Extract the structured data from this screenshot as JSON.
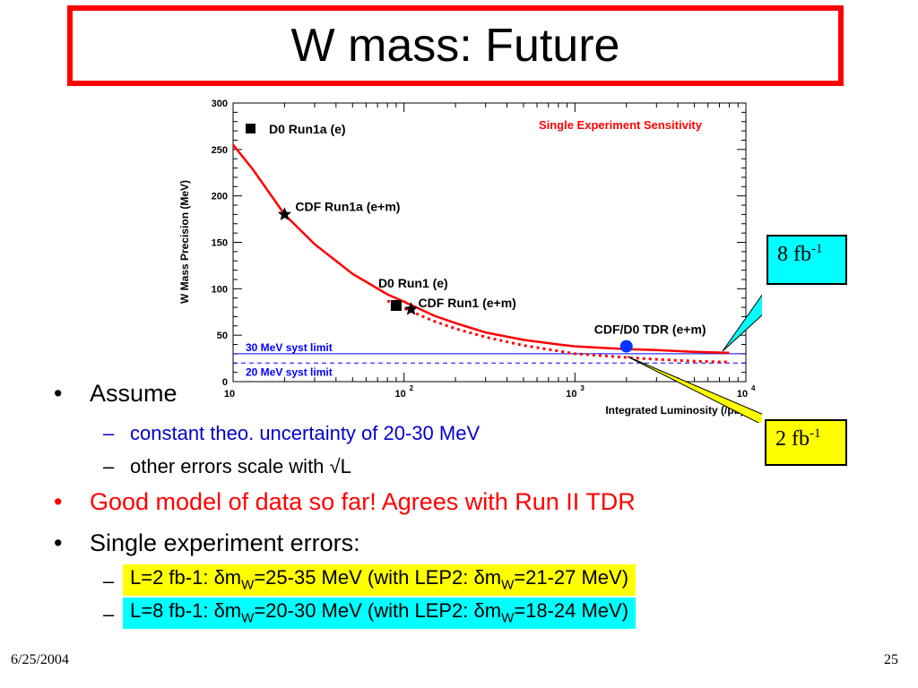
{
  "slide": {
    "title": "W mass: Future",
    "date": "6/25/2004",
    "page_number": "25"
  },
  "callouts": {
    "lum8": {
      "base": "8 fb",
      "sup": "-1",
      "color": "#00ffff"
    },
    "lum2": {
      "base": "2 fb",
      "sup": "-1",
      "color": "#ffff00"
    }
  },
  "bullets": {
    "assume": "Assume",
    "sub1": "constant theo. uncertainty of 20-30 MeV",
    "sub2": "other errors scale with √L",
    "good_model": "Good model of data so far! Agrees with Run II TDR",
    "single": "Single experiment errors:",
    "line1": {
      "pre": "L=2 fb-1: δm",
      "sub": "W",
      "mid": "=25-35 MeV (with LEP2: δm",
      "sub2": "W",
      "post": "=21-27 MeV)",
      "color": "#ffff00"
    },
    "line2": {
      "pre": "L=8 fb-1: δm",
      "sub": "W",
      "mid": "=20-30 MeV (with LEP2: δm",
      "sub2": "W",
      "post": "=18-24 MeV)",
      "color": "#00ffff"
    },
    "accent_blue": "#0000cc",
    "accent_red": "#ff0000"
  },
  "chart_data": {
    "type": "line",
    "title": "Single Experiment Sensitivity",
    "xlabel": "Integrated Luminosity    (/pb)",
    "ylabel": "W Mass Precision (MeV)",
    "xscale": "log",
    "xlim": [
      10,
      10000
    ],
    "ylim": [
      0,
      300
    ],
    "yticks": [
      0,
      50,
      100,
      150,
      200,
      250,
      300
    ],
    "xtick_labels": [
      {
        "value": 10,
        "base": "10",
        "exp": ""
      },
      {
        "value": 100,
        "base": "10",
        "exp": "2"
      },
      {
        "value": 1000,
        "base": "10",
        "exp": "3"
      },
      {
        "value": 10000,
        "base": "10",
        "exp": "4"
      }
    ],
    "series": [
      {
        "style": "solid",
        "color": "#ff0000",
        "x": [
          10,
          13,
          20,
          30,
          50,
          80,
          100,
          150,
          200,
          300,
          500,
          800,
          1000,
          2000,
          3000,
          5000,
          8000
        ],
        "y": [
          255,
          229,
          180,
          148,
          116,
          94,
          86,
          71,
          63,
          53,
          45,
          40,
          38,
          35,
          34,
          32,
          31
        ]
      },
      {
        "style": "dotted",
        "color": "#ff0000",
        "x": [
          80,
          100,
          150,
          200,
          300,
          500,
          800,
          1000,
          2000,
          3000,
          5000,
          8000
        ],
        "y": [
          87,
          79,
          65,
          57,
          48,
          39,
          33,
          30,
          26,
          24,
          22,
          21
        ]
      }
    ],
    "hlines": [
      {
        "y": 30,
        "label": "30 MeV syst limit",
        "style": "solid",
        "color": "#0000ff"
      },
      {
        "y": 20,
        "label": "20 MeV syst limit",
        "style": "dashed",
        "color": "#0000ff"
      }
    ],
    "points": [
      {
        "x": 20,
        "y": 180,
        "marker": "star",
        "label": "CDF Run1a (e+m)",
        "color": "#000000"
      },
      {
        "x": 90,
        "y": 82,
        "marker": "square",
        "label": "D0 Run1 (e)",
        "color": "#000000"
      },
      {
        "x": 110,
        "y": 78,
        "marker": "star",
        "label": "CDF Run1 (e+m)",
        "color": "#000000"
      },
      {
        "x": 2000,
        "y": 38,
        "marker": "circle",
        "label": "CDF/D0 TDR (e+m)",
        "color": "#0033ff"
      }
    ],
    "legend": {
      "marker": "square",
      "label": "D0 Run1a (e)",
      "placement": "top-left"
    }
  }
}
